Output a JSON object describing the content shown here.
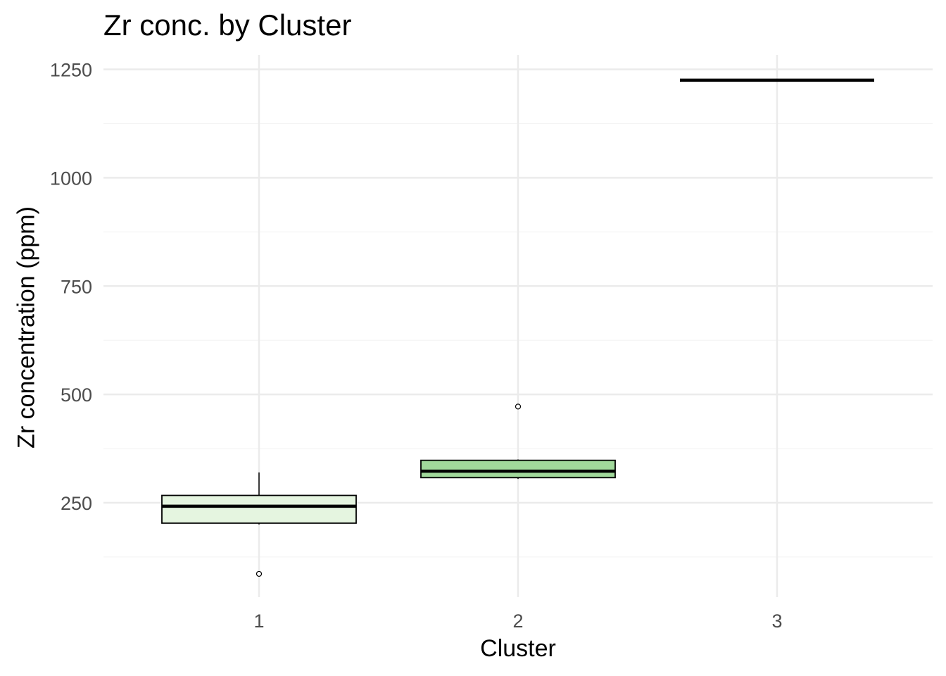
{
  "chart_data": {
    "type": "boxplot",
    "title": "Zr conc. by Cluster",
    "xlabel": "Cluster",
    "ylabel": "Zr concentration (ppm)",
    "categories": [
      "1",
      "2",
      "3"
    ],
    "ylim": [
      40,
      1285
    ],
    "yticks": [
      250,
      500,
      750,
      1000,
      1250
    ],
    "y_minor_ticks": [
      125,
      375,
      625,
      875,
      1125
    ],
    "grid": true,
    "boxes": [
      {
        "category": "1",
        "whisker_low": 200,
        "q1": 203,
        "median": 242,
        "q3": 267,
        "whisker_high": 320,
        "outliers": [
          86
        ],
        "fill": "#e5f5e0"
      },
      {
        "category": "2",
        "whisker_low": 305,
        "q1": 308,
        "median": 323,
        "q3": 348,
        "whisker_high": 350,
        "outliers": [
          472
        ],
        "fill": "#a1d99b"
      },
      {
        "category": "3",
        "whisker_low": 1225,
        "q1": 1225,
        "median": 1225,
        "q3": 1225,
        "whisker_high": 1225,
        "outliers": [],
        "fill": "#31a354"
      }
    ],
    "colors": {
      "grid_major": "#ebebeb",
      "grid_minor": "#f4f4f4",
      "tick_text": "#4d4d4d",
      "stroke": "#000000"
    }
  }
}
